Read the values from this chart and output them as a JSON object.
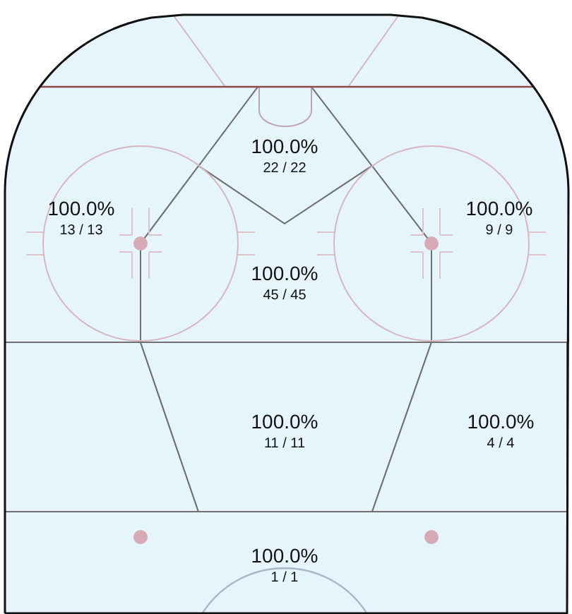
{
  "chart_data": {
    "type": "other",
    "categories": [
      null,
      null,
      null,
      null,
      null,
      null,
      null
    ],
    "values": [
      100.0,
      100.0,
      100.0,
      100.0,
      100.0,
      100.0,
      100.0
    ],
    "value_labels": [
      "100.0%",
      "100.0%",
      "100.0%",
      "100.0%",
      "100.0%",
      "100.0%",
      "100.0%"
    ],
    "annotations": [
      "22 / 22",
      "13 / 13",
      "9 / 9",
      "45 / 45",
      "11 / 11",
      "4 / 4",
      "1 / 1"
    ],
    "color": "#e6f4fc"
  }
}
